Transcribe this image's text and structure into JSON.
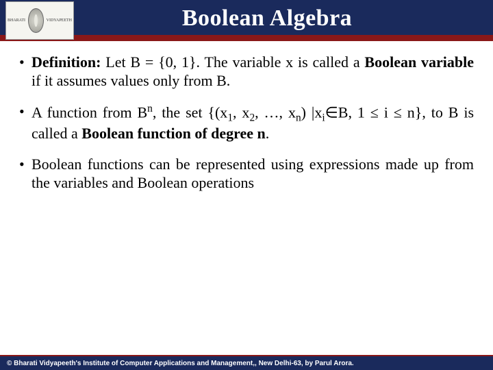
{
  "header": {
    "title": "Boolean Algebra",
    "logo_left": "BHARATI",
    "logo_right": "VIDYAPEETH",
    "band_top_color": "#1a2a5c",
    "band_bottom_color": "#8a1818"
  },
  "bullets": [
    {
      "prefix_bold": "Definition:",
      "rest_before": " Let B = {0, 1}. The variable x is called a ",
      "bold_mid": "Boolean variable",
      "rest_after": " if it assumes values only from B."
    },
    {
      "plain": "A function from B",
      "sup1": "n",
      "plain2": ", the set {(x",
      "sub1": "1",
      "plain3": ", x",
      "sub2": "2",
      "plain4": ", …, x",
      "sub3": "n",
      "plain5": ") |x",
      "sub4": "i",
      "plain6": "∈B, 1 ≤ i ≤ n}, to B is called a ",
      "bold_tail": "Boolean function of degree n",
      "tail": "."
    },
    {
      "full": "Boolean functions can be represented using expressions made up from the variables and Boolean operations"
    }
  ],
  "footer": {
    "text": "© Bharati Vidyapeeth's Institute of Computer Applications and Management,, New Delhi-63, by Parul Arora."
  },
  "colors": {
    "text": "#000000",
    "title_text": "#ffffff",
    "footer_text": "#ffffff"
  }
}
